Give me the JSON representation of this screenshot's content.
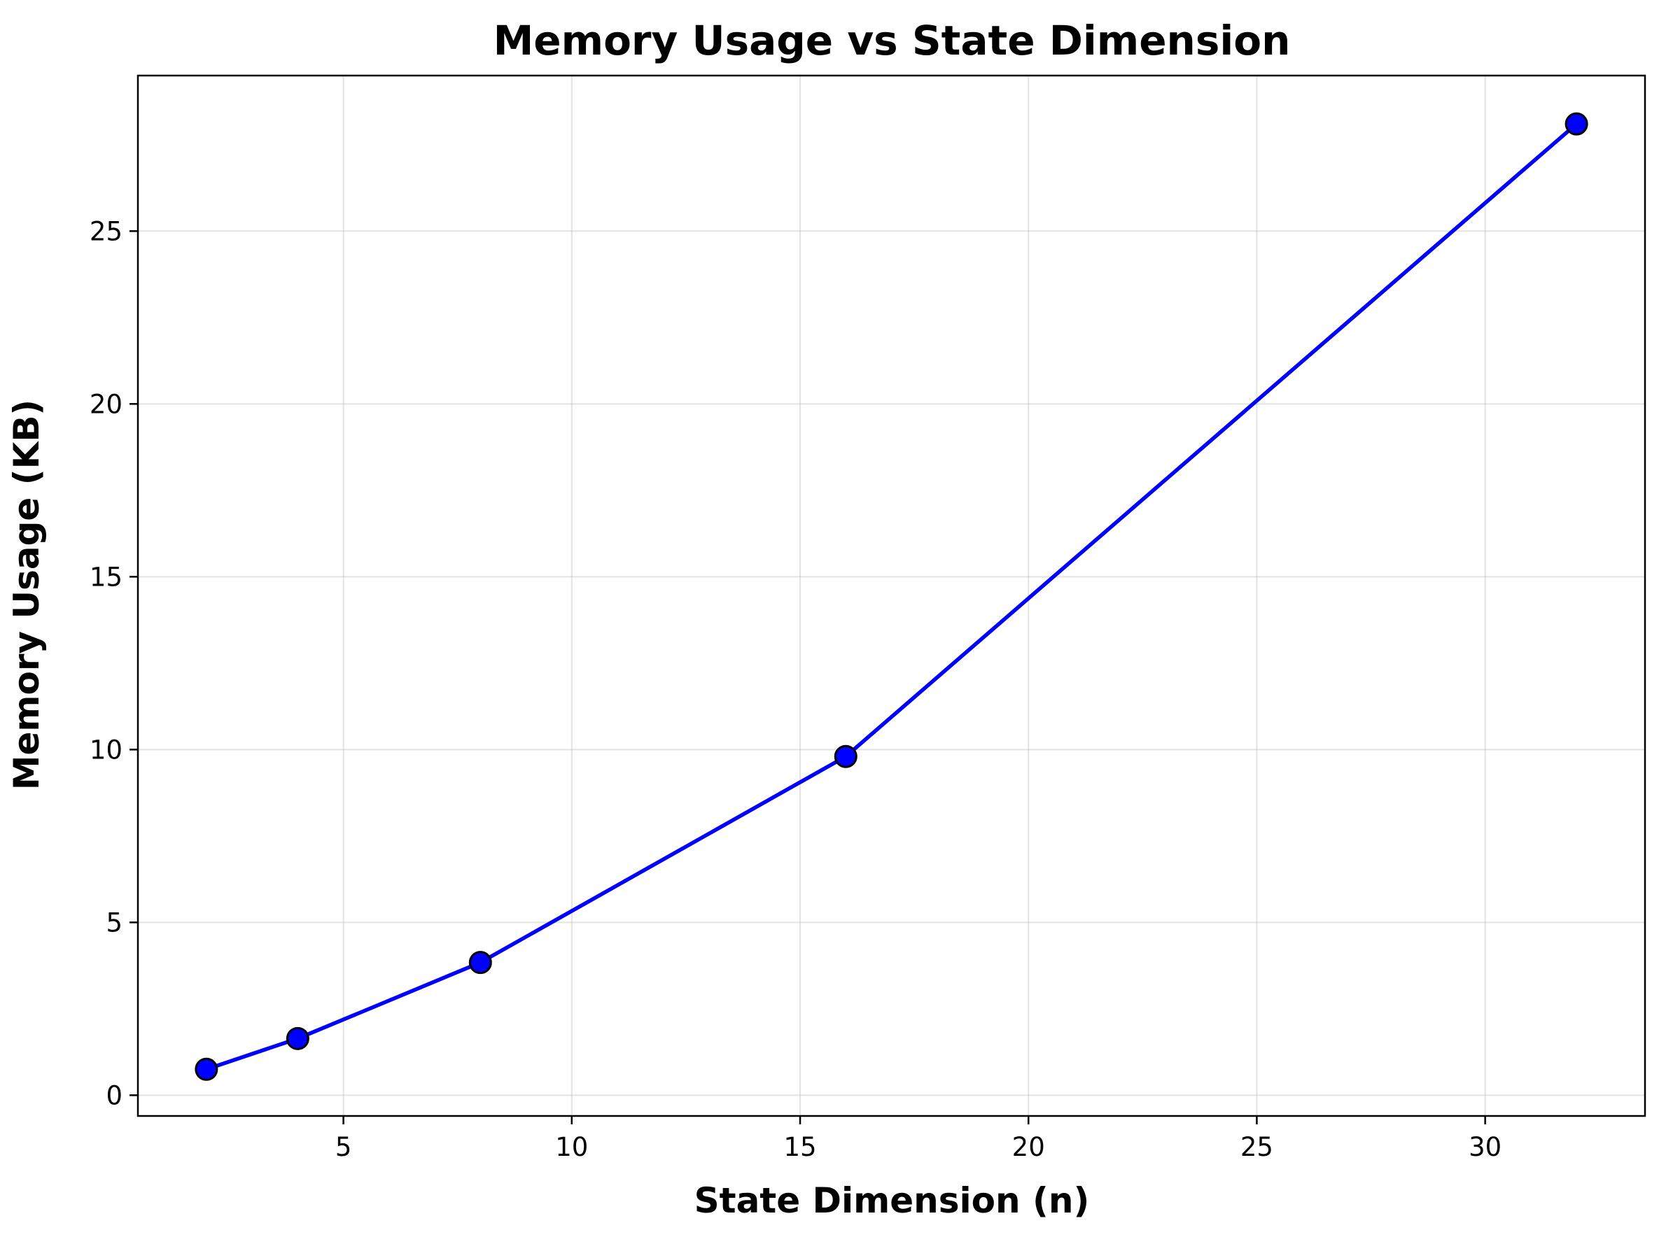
{
  "chart_data": {
    "type": "line",
    "title": "Memory Usage vs State Dimension",
    "xlabel": "State Dimension (n)",
    "ylabel": "Memory Usage (KB)",
    "xlim": [
      0.5,
      33.5
    ],
    "ylim": [
      -0.6,
      29.5
    ],
    "xticks": [
      5,
      10,
      15,
      20,
      25,
      30
    ],
    "yticks": [
      0,
      5,
      10,
      15,
      20,
      25
    ],
    "grid": true,
    "series": [
      {
        "x": [
          2,
          4,
          8,
          16,
          32
        ],
        "y": [
          0.75,
          1.64,
          3.84,
          9.8,
          28.1
        ],
        "color": "#0000ff",
        "marker": "circle",
        "marker_edge_color": "#000000"
      }
    ]
  }
}
